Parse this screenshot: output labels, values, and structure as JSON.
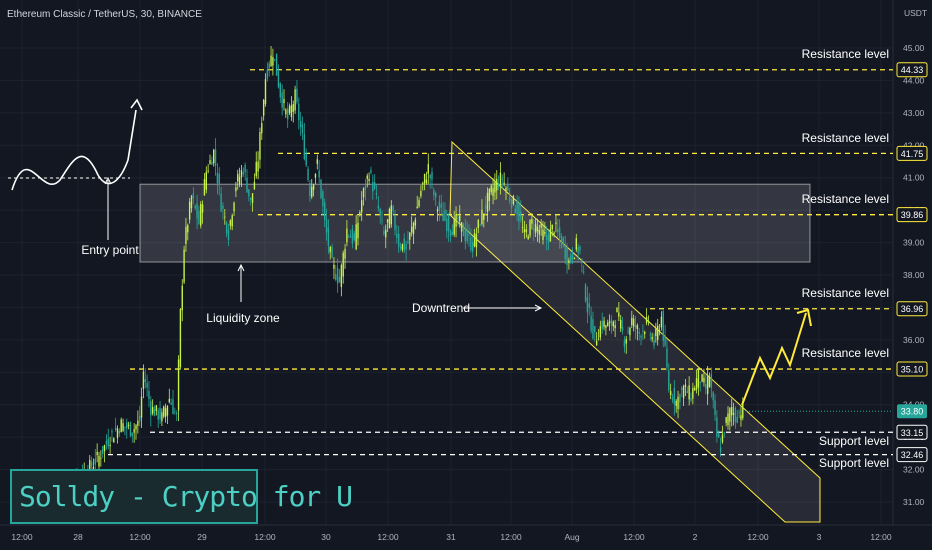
{
  "header": {
    "symbol": "Ethereum Classic / TetherUS, 30, BINANCE",
    "currency": "USDT"
  },
  "watermark": {
    "text": "Solldy - Crypto for U"
  },
  "colors": {
    "background": "#131722",
    "up": "#c6f24a",
    "down": "#26a69a",
    "resistance": "#ffeb3b",
    "support": "#ffffff",
    "zone_fill": "#ffffff",
    "axis_text": "#b2b5be",
    "grid": "#1e222d",
    "watermark": "#26a69a"
  },
  "chart_data": {
    "type": "candlestick",
    "title": "Ethereum Classic / TetherUS, 30, BINANCE",
    "y_unit": "USDT",
    "ylim": [
      30.2,
      46.2
    ],
    "grid": true,
    "y_ticks": [
      31,
      32,
      33,
      34,
      35,
      36,
      37,
      38,
      39,
      40,
      41,
      42,
      43,
      44,
      45
    ],
    "x_ticks": [
      "12:00",
      "28",
      "12:00",
      "29",
      "12:00",
      "30",
      "12:00",
      "31",
      "12:00",
      "Aug",
      "12:00",
      "2",
      "12:00",
      "3",
      "12:00"
    ],
    "price_points": [
      [
        0,
        31.0
      ],
      [
        6,
        31.6
      ],
      [
        14,
        32.0
      ],
      [
        20,
        32.4
      ],
      [
        26,
        33.0
      ],
      [
        32,
        33.4
      ],
      [
        38,
        33.2
      ],
      [
        42,
        33.5
      ],
      [
        44,
        35.0
      ],
      [
        48,
        33.9
      ],
      [
        54,
        33.6
      ],
      [
        58,
        34.2
      ],
      [
        62,
        33.6
      ],
      [
        64,
        36.8
      ],
      [
        66,
        38.9
      ],
      [
        70,
        40.4
      ],
      [
        74,
        39.6
      ],
      [
        78,
        41.2
      ],
      [
        82,
        41.8
      ],
      [
        86,
        40.2
      ],
      [
        90,
        39.3
      ],
      [
        94,
        40.8
      ],
      [
        98,
        41.3
      ],
      [
        102,
        40.2
      ],
      [
        106,
        41.6
      ],
      [
        110,
        44.1
      ],
      [
        114,
        44.9
      ],
      [
        118,
        43.6
      ],
      [
        122,
        42.8
      ],
      [
        126,
        43.5
      ],
      [
        130,
        42.2
      ],
      [
        134,
        40.6
      ],
      [
        138,
        41.4
      ],
      [
        142,
        39.6
      ],
      [
        146,
        38.3
      ],
      [
        150,
        37.8
      ],
      [
        154,
        39.4
      ],
      [
        158,
        39.0
      ],
      [
        162,
        40.3
      ],
      [
        166,
        41.2
      ],
      [
        170,
        40.3
      ],
      [
        174,
        39.2
      ],
      [
        178,
        40.0
      ],
      [
        182,
        39.0
      ],
      [
        186,
        38.8
      ],
      [
        190,
        39.6
      ],
      [
        194,
        40.6
      ],
      [
        198,
        41.3
      ],
      [
        202,
        40.2
      ],
      [
        206,
        39.8
      ],
      [
        210,
        39.4
      ],
      [
        214,
        39.7
      ],
      [
        218,
        39.2
      ],
      [
        222,
        38.9
      ],
      [
        226,
        39.7
      ],
      [
        230,
        40.3
      ],
      [
        234,
        40.8
      ],
      [
        238,
        41.0
      ],
      [
        242,
        40.4
      ],
      [
        246,
        40.0
      ],
      [
        250,
        39.2
      ],
      [
        254,
        39.6
      ],
      [
        258,
        39.4
      ],
      [
        262,
        39.1
      ],
      [
        266,
        39.5
      ],
      [
        270,
        39.0
      ],
      [
        274,
        38.4
      ],
      [
        278,
        38.9
      ],
      [
        280,
        38.7
      ],
      [
        284,
        37.0
      ],
      [
        288,
        36.0
      ],
      [
        292,
        36.5
      ],
      [
        296,
        36.4
      ],
      [
        300,
        36.8
      ],
      [
        304,
        36.0
      ],
      [
        308,
        36.6
      ],
      [
        312,
        36.2
      ],
      [
        316,
        36.5
      ],
      [
        320,
        35.9
      ],
      [
        324,
        36.7
      ],
      [
        328,
        34.5
      ],
      [
        332,
        34.1
      ],
      [
        336,
        34.5
      ],
      [
        340,
        34.3
      ],
      [
        344,
        34.9
      ],
      [
        348,
        34.5
      ],
      [
        350,
        34.9
      ],
      [
        354,
        33.0
      ],
      [
        356,
        32.7
      ],
      [
        358,
        33.3
      ],
      [
        362,
        33.9
      ],
      [
        364,
        33.6
      ],
      [
        368,
        33.9
      ]
    ],
    "levels": [
      {
        "label": "Resistance level",
        "price": 44.33,
        "tag": "44.33",
        "kind": "resistance"
      },
      {
        "label": "Resistance level",
        "price": 41.75,
        "tag": "41.75",
        "kind": "resistance"
      },
      {
        "label": "Resistance level",
        "price": 39.86,
        "tag": "39.86",
        "kind": "resistance"
      },
      {
        "label": "Resistance level",
        "price": 36.96,
        "tag": "36.96",
        "kind": "resistance"
      },
      {
        "label": "Resistance level",
        "price": 35.1,
        "tag": "35.10",
        "kind": "resistance"
      },
      {
        "label": "Support level",
        "price": 33.15,
        "tag": "33.15",
        "kind": "support"
      },
      {
        "label": "Support level",
        "price": 32.46,
        "tag": "32.46",
        "kind": "support"
      }
    ],
    "last_price": {
      "price": 33.8,
      "tag": "33.80"
    },
    "liquidity_zone": {
      "label": "Liquidity zone",
      "price_top": 40.8,
      "price_bottom": 38.4
    },
    "channel_label": "Downtrend",
    "entry_label": "Entry point"
  }
}
